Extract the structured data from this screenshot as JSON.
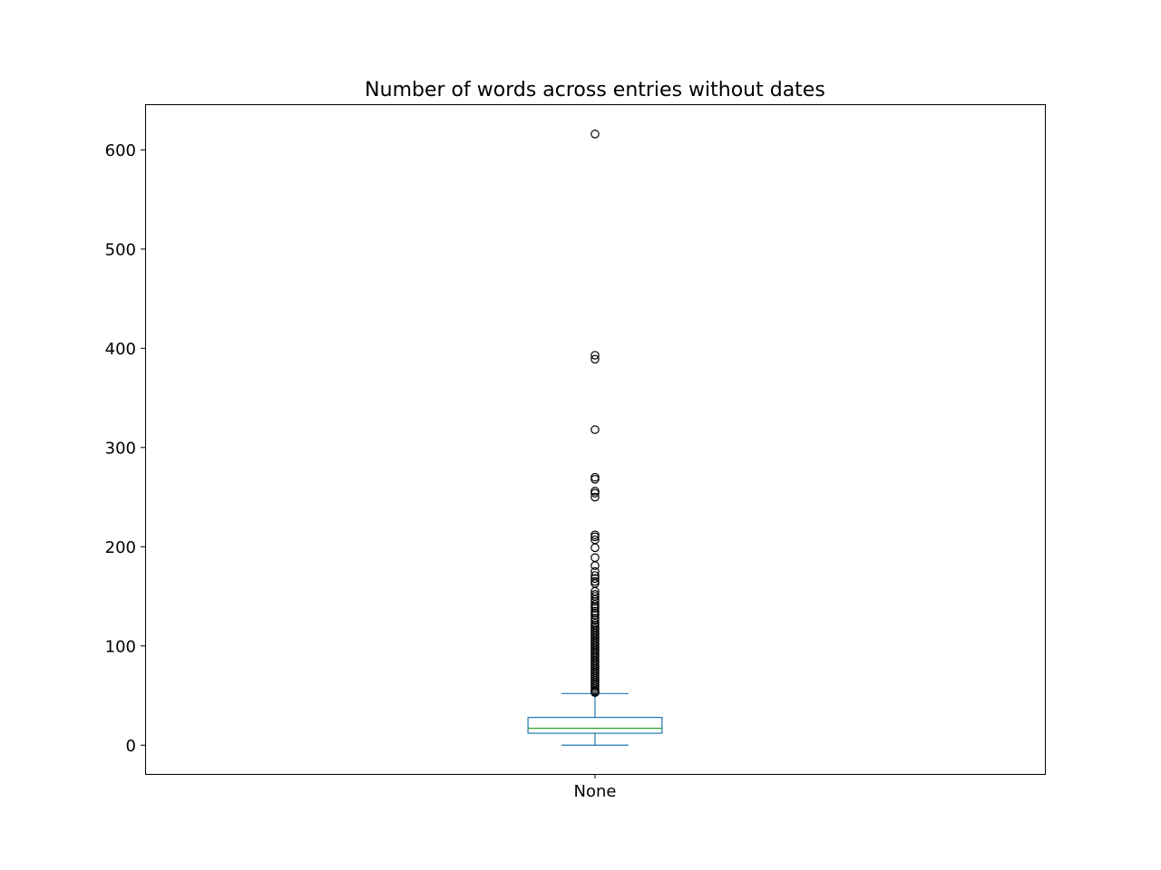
{
  "chart_data": {
    "type": "box",
    "title": "Number of words across entries without dates",
    "xlabel": "",
    "ylabel": "",
    "categories": [
      "None"
    ],
    "ylim": [
      -29,
      646
    ],
    "yticks": [
      0,
      100,
      200,
      300,
      400,
      500,
      600
    ],
    "grid": false,
    "legend": null,
    "colors": {
      "box": "#1f77b4",
      "median": "#2ca02c",
      "flier": "#000000",
      "axes": "#000000"
    },
    "boxes": [
      {
        "category": "None",
        "whisker_low": 0,
        "q1": 12,
        "median": 17,
        "q3": 28,
        "whisker_high": 52,
        "fliers": [
          616,
          393,
          389,
          318,
          270,
          268,
          256,
          254,
          250,
          212,
          210,
          207,
          199,
          189,
          181,
          175,
          171,
          168,
          165,
          163,
          155,
          152,
          150,
          147,
          145,
          142,
          140,
          138,
          135,
          133,
          131,
          128,
          126,
          123,
          121,
          119,
          117,
          115,
          113,
          111,
          109,
          107,
          105,
          103,
          101,
          99,
          97,
          95,
          93,
          91,
          89,
          87,
          85,
          83,
          81,
          79,
          77,
          75,
          73,
          71,
          69,
          67,
          65,
          63,
          61,
          59,
          57,
          55,
          54,
          53
        ]
      }
    ]
  }
}
